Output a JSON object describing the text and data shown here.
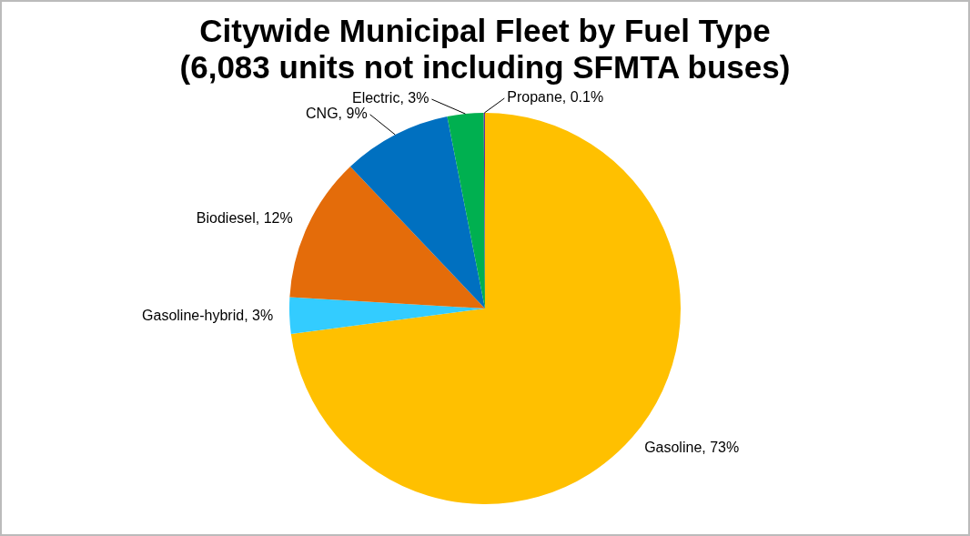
{
  "chart_data": {
    "type": "pie",
    "title": "Citywide Municipal Fleet by Fuel Type\n(6,083 units not including SFMTA buses)",
    "categories": [
      "Gasoline",
      "Gasoline-hybrid",
      "Biodiesel",
      "CNG",
      "Electric",
      "Propane"
    ],
    "values": [
      73,
      3,
      12,
      9,
      3,
      0.1
    ],
    "colors": [
      "#ffc000",
      "#33ccff",
      "#e46c0a",
      "#0070c0",
      "#00b050",
      "#7030a0"
    ],
    "value_labels": [
      "73%",
      "3%",
      "12%",
      "9%",
      "3%",
      "0.1%"
    ],
    "legend": false
  }
}
